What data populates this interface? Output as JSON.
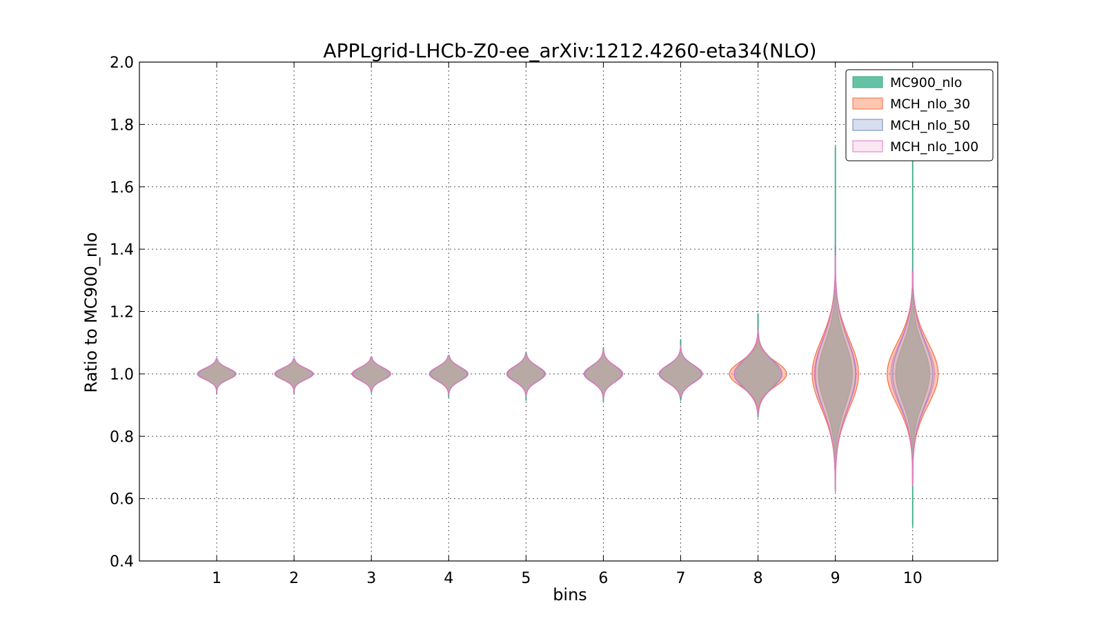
{
  "chart_data": {
    "type": "violin",
    "title": "APPLgrid-LHCb-Z0-ee_arXiv:1212.4260-eta34(NLO)",
    "xlabel": "bins",
    "ylabel": "Ratio to MC900_nlo",
    "xlim": [
      0,
      11.1
    ],
    "ylim": [
      0.4,
      2.0
    ],
    "x_ticks": [
      1,
      2,
      3,
      4,
      5,
      6,
      7,
      8,
      9,
      10
    ],
    "y_ticks": [
      0.4,
      0.6,
      0.8,
      1.0,
      1.2,
      1.4,
      1.6,
      1.8,
      2.0
    ],
    "y_tick_labels": [
      "0.4",
      "0.6",
      "0.8",
      "1.0",
      "1.2",
      "1.4",
      "1.6",
      "1.8",
      "2.0"
    ],
    "grid": true,
    "legend_position": "top-right",
    "series": [
      {
        "name": "MC900_nlo",
        "fill": "#66c2a5",
        "edge": "#3aa884",
        "fill_opacity": 1.0,
        "bins": [
          {
            "bin": 1,
            "min": 0.935,
            "max": 1.05,
            "mode": 1.0,
            "half_width": 0.24,
            "spread": 0.018
          },
          {
            "bin": 2,
            "min": 0.935,
            "max": 1.05,
            "mode": 1.0,
            "half_width": 0.24,
            "spread": 0.018
          },
          {
            "bin": 3,
            "min": 0.94,
            "max": 1.055,
            "mode": 1.0,
            "half_width": 0.24,
            "spread": 0.02
          },
          {
            "bin": 4,
            "min": 0.925,
            "max": 1.06,
            "mode": 1.0,
            "half_width": 0.24,
            "spread": 0.022
          },
          {
            "bin": 5,
            "min": 0.915,
            "max": 1.07,
            "mode": 1.0,
            "half_width": 0.24,
            "spread": 0.024
          },
          {
            "bin": 6,
            "min": 0.91,
            "max": 1.085,
            "mode": 1.0,
            "half_width": 0.24,
            "spread": 0.026
          },
          {
            "bin": 7,
            "min": 0.915,
            "max": 1.11,
            "mode": 1.0,
            "half_width": 0.27,
            "spread": 0.028
          },
          {
            "bin": 8,
            "min": 0.86,
            "max": 1.195,
            "mode": 1.0,
            "half_width": 0.28,
            "spread": 0.045
          },
          {
            "bin": 9,
            "min": 0.62,
            "max": 1.735,
            "mode": 1.0,
            "half_width": 0.22,
            "spread": 0.1
          },
          {
            "bin": 10,
            "min": 0.505,
            "max": 1.71,
            "mode": 1.0,
            "half_width": 0.22,
            "spread": 0.09
          }
        ]
      },
      {
        "name": "MCH_nlo_30",
        "fill": "#fc8d62",
        "edge": "#f46d43",
        "fill_opacity": 0.5,
        "bins": [
          {
            "bin": 1,
            "min": 0.94,
            "max": 1.05,
            "mode": 1.0,
            "half_width": 0.25,
            "spread": 0.018
          },
          {
            "bin": 2,
            "min": 0.94,
            "max": 1.05,
            "mode": 1.0,
            "half_width": 0.25,
            "spread": 0.018
          },
          {
            "bin": 3,
            "min": 0.945,
            "max": 1.055,
            "mode": 1.0,
            "half_width": 0.25,
            "spread": 0.02
          },
          {
            "bin": 4,
            "min": 0.935,
            "max": 1.06,
            "mode": 1.0,
            "half_width": 0.25,
            "spread": 0.022
          },
          {
            "bin": 5,
            "min": 0.93,
            "max": 1.065,
            "mode": 1.0,
            "half_width": 0.25,
            "spread": 0.024
          },
          {
            "bin": 6,
            "min": 0.925,
            "max": 1.075,
            "mode": 1.0,
            "half_width": 0.25,
            "spread": 0.026
          },
          {
            "bin": 7,
            "min": 0.925,
            "max": 1.09,
            "mode": 1.0,
            "half_width": 0.28,
            "spread": 0.028
          },
          {
            "bin": 8,
            "min": 0.88,
            "max": 1.13,
            "mode": 1.0,
            "half_width": 0.37,
            "spread": 0.04
          },
          {
            "bin": 9,
            "min": 0.68,
            "max": 1.3,
            "mode": 1.0,
            "half_width": 0.3,
            "spread": 0.11
          },
          {
            "bin": 10,
            "min": 0.7,
            "max": 1.28,
            "mode": 1.0,
            "half_width": 0.33,
            "spread": 0.1
          }
        ]
      },
      {
        "name": "MCH_nlo_50",
        "fill": "#8da0cb",
        "edge": "#6f86bf",
        "fill_opacity": 0.25,
        "bins": [
          {
            "bin": 1,
            "min": 0.94,
            "max": 1.05,
            "mode": 1.0,
            "half_width": 0.24,
            "spread": 0.018
          },
          {
            "bin": 2,
            "min": 0.94,
            "max": 1.05,
            "mode": 1.0,
            "half_width": 0.24,
            "spread": 0.018
          },
          {
            "bin": 3,
            "min": 0.945,
            "max": 1.055,
            "mode": 1.0,
            "half_width": 0.24,
            "spread": 0.02
          },
          {
            "bin": 4,
            "min": 0.935,
            "max": 1.06,
            "mode": 1.0,
            "half_width": 0.24,
            "spread": 0.022
          },
          {
            "bin": 5,
            "min": 0.93,
            "max": 1.065,
            "mode": 1.0,
            "half_width": 0.24,
            "spread": 0.024
          },
          {
            "bin": 6,
            "min": 0.925,
            "max": 1.075,
            "mode": 1.0,
            "half_width": 0.24,
            "spread": 0.026
          },
          {
            "bin": 7,
            "min": 0.925,
            "max": 1.09,
            "mode": 1.0,
            "half_width": 0.27,
            "spread": 0.028
          },
          {
            "bin": 8,
            "min": 0.87,
            "max": 1.15,
            "mode": 1.0,
            "half_width": 0.3,
            "spread": 0.045
          },
          {
            "bin": 9,
            "min": 0.65,
            "max": 1.42,
            "mode": 1.0,
            "half_width": 0.26,
            "spread": 0.11
          },
          {
            "bin": 10,
            "min": 0.66,
            "max": 1.34,
            "mode": 1.0,
            "half_width": 0.26,
            "spread": 0.1
          }
        ]
      },
      {
        "name": "MCH_nlo_100",
        "fill": "#f4b6de",
        "edge": "#e377c2",
        "fill_opacity": 0.22,
        "bins": [
          {
            "bin": 1,
            "min": 0.94,
            "max": 1.05,
            "mode": 1.0,
            "half_width": 0.25,
            "spread": 0.018
          },
          {
            "bin": 2,
            "min": 0.94,
            "max": 1.05,
            "mode": 1.0,
            "half_width": 0.25,
            "spread": 0.018
          },
          {
            "bin": 3,
            "min": 0.945,
            "max": 1.055,
            "mode": 1.0,
            "half_width": 0.25,
            "spread": 0.02
          },
          {
            "bin": 4,
            "min": 0.935,
            "max": 1.06,
            "mode": 1.0,
            "half_width": 0.25,
            "spread": 0.022
          },
          {
            "bin": 5,
            "min": 0.93,
            "max": 1.065,
            "mode": 1.0,
            "half_width": 0.25,
            "spread": 0.024
          },
          {
            "bin": 6,
            "min": 0.925,
            "max": 1.075,
            "mode": 1.0,
            "half_width": 0.25,
            "spread": 0.026
          },
          {
            "bin": 7,
            "min": 0.925,
            "max": 1.09,
            "mode": 1.0,
            "half_width": 0.28,
            "spread": 0.028
          },
          {
            "bin": 8,
            "min": 0.87,
            "max": 1.14,
            "mode": 1.0,
            "half_width": 0.31,
            "spread": 0.045
          },
          {
            "bin": 9,
            "min": 0.62,
            "max": 1.38,
            "mode": 1.0,
            "half_width": 0.27,
            "spread": 0.11
          },
          {
            "bin": 10,
            "min": 0.64,
            "max": 1.33,
            "mode": 1.0,
            "half_width": 0.28,
            "spread": 0.1
          }
        ]
      }
    ]
  }
}
